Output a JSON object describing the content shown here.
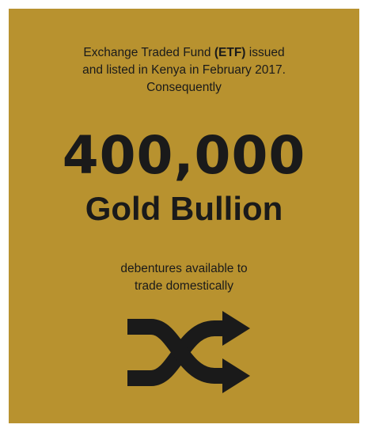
{
  "intro": {
    "line1_pre": "Exchange Traded Fund ",
    "line1_bold": "(ETF)",
    "line1_post": " issued",
    "line2": "and listed in Kenya in February 2017.",
    "line3": "Consequently"
  },
  "headline": {
    "number": "400,000",
    "label": "Gold Bullion"
  },
  "outro": {
    "line1": "debentures available to",
    "line2": "trade domestically"
  },
  "icon": "shuffle-icon",
  "colors": {
    "background": "#b8922f",
    "text": "#1a1a1a"
  }
}
